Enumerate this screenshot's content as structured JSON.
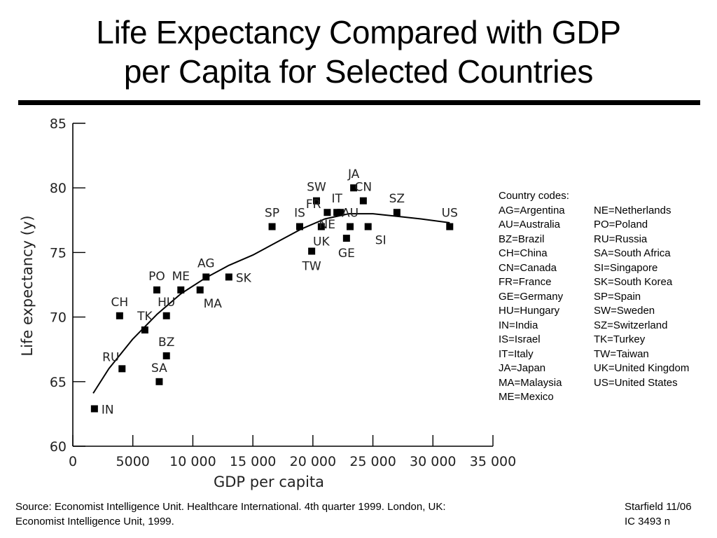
{
  "header": {
    "title_line1": "Life Expectancy Compared with GDP",
    "title_line2": "per Capita for Selected Countries"
  },
  "chart_data": {
    "type": "scatter",
    "xlabel": "GDP per capita",
    "ylabel": "Life expectancy (y)",
    "xlim": [
      0,
      35000
    ],
    "ylim": [
      60,
      85
    ],
    "x_ticks": [
      {
        "value": 0,
        "label": "0"
      },
      {
        "value": 5000,
        "label": "5000"
      },
      {
        "value": 10000,
        "label": "10 000"
      },
      {
        "value": 15000,
        "label": "15 000"
      },
      {
        "value": 20000,
        "label": "20 000"
      },
      {
        "value": 25000,
        "label": "25 000"
      },
      {
        "value": 30000,
        "label": "30 000"
      },
      {
        "value": 35000,
        "label": "35 000"
      }
    ],
    "y_ticks": [
      {
        "value": 60,
        "label": "60"
      },
      {
        "value": 65,
        "label": "65"
      },
      {
        "value": 70,
        "label": "70"
      },
      {
        "value": 75,
        "label": "75"
      },
      {
        "value": 80,
        "label": "80"
      },
      {
        "value": 85,
        "label": "85"
      }
    ],
    "grid": false,
    "marker": "square",
    "marker_color": "#000000",
    "points": [
      {
        "label": "IN",
        "x": 1800,
        "y": 62.9,
        "label_side": "right"
      },
      {
        "label": "RU",
        "x": 4100,
        "y": 66.0,
        "label_side": "upper-left"
      },
      {
        "label": "CH",
        "x": 3900,
        "y": 70.1,
        "label_side": "above"
      },
      {
        "label": "TK",
        "x": 6000,
        "y": 69.0,
        "label_side": "above"
      },
      {
        "label": "SA",
        "x": 7200,
        "y": 65.0,
        "label_side": "above"
      },
      {
        "label": "BZ",
        "x": 7800,
        "y": 67.0,
        "label_side": "above"
      },
      {
        "label": "HU",
        "x": 7800,
        "y": 70.1,
        "label_side": "above"
      },
      {
        "label": "PO",
        "x": 7000,
        "y": 72.1,
        "label_side": "above"
      },
      {
        "label": "ME",
        "x": 9000,
        "y": 72.1,
        "label_side": "above"
      },
      {
        "label": "MA",
        "x": 10600,
        "y": 72.1,
        "label_side": "below-right"
      },
      {
        "label": "AG",
        "x": 11100,
        "y": 73.1,
        "label_side": "above"
      },
      {
        "label": "SK",
        "x": 13000,
        "y": 73.1,
        "label_side": "right"
      },
      {
        "label": "SP",
        "x": 16600,
        "y": 77.0,
        "label_side": "above"
      },
      {
        "label": "IS",
        "x": 18900,
        "y": 77.0,
        "label_side": "above"
      },
      {
        "label": "TW",
        "x": 19900,
        "y": 75.1,
        "label_side": "below"
      },
      {
        "label": "SW",
        "x": 20300,
        "y": 79.0,
        "label_side": "above"
      },
      {
        "label": "UK",
        "x": 20700,
        "y": 77.0,
        "label_side": "below"
      },
      {
        "label": "FR",
        "x": 21200,
        "y": 78.1,
        "label_side": "left"
      },
      {
        "label": "IT",
        "x": 22000,
        "y": 78.1,
        "label_side": "above"
      },
      {
        "label": "NE",
        "x": 22300,
        "y": 78.1,
        "label_side": "below-left"
      },
      {
        "label": "GE",
        "x": 22800,
        "y": 76.1,
        "label_side": "below"
      },
      {
        "label": "AU",
        "x": 23100,
        "y": 77.0,
        "label_side": "above"
      },
      {
        "label": "JA",
        "x": 23400,
        "y": 80.0,
        "label_side": "above"
      },
      {
        "label": "CN",
        "x": 24200,
        "y": 79.0,
        "label_side": "above"
      },
      {
        "label": "SI",
        "x": 24600,
        "y": 77.0,
        "label_side": "below-right"
      },
      {
        "label": "SZ",
        "x": 27000,
        "y": 78.1,
        "label_side": "above"
      },
      {
        "label": "US",
        "x": 31400,
        "y": 77.0,
        "label_side": "above"
      }
    ],
    "trend_line": [
      {
        "x": 1700,
        "y": 64.1
      },
      {
        "x": 3000,
        "y": 66.0
      },
      {
        "x": 5000,
        "y": 68.3
      },
      {
        "x": 7000,
        "y": 70.2
      },
      {
        "x": 9000,
        "y": 71.8
      },
      {
        "x": 11000,
        "y": 73.0
      },
      {
        "x": 13000,
        "y": 74.0
      },
      {
        "x": 15000,
        "y": 74.8
      },
      {
        "x": 17000,
        "y": 75.8
      },
      {
        "x": 19000,
        "y": 76.8
      },
      {
        "x": 21000,
        "y": 77.6
      },
      {
        "x": 23000,
        "y": 78.0
      },
      {
        "x": 25000,
        "y": 78.0
      },
      {
        "x": 27000,
        "y": 77.8
      },
      {
        "x": 29000,
        "y": 77.6
      },
      {
        "x": 31400,
        "y": 77.3
      }
    ]
  },
  "legend": {
    "title": "Country codes:",
    "left": [
      "AG=Argentina",
      "AU=Australia",
      "BZ=Brazil",
      "CH=China",
      "CN=Canada",
      "FR=France",
      "GE=Germany",
      "HU=Hungary",
      "IN=India",
      "IS=Israel",
      "IT=Italy",
      "JA=Japan",
      "MA=Malaysia",
      "ME=Mexico"
    ],
    "right": [
      "NE=Netherlands",
      "PO=Poland",
      "RU=Russia",
      "SA=South Africa",
      "SI=Singapore",
      "SK=South Korea",
      "SP=Spain",
      "SW=Sweden",
      "SZ=Switzerland",
      "TK=Turkey",
      "TW=Taiwan",
      "UK=United Kingdom",
      "US=United States"
    ]
  },
  "footer": {
    "source_line1": "Source: Economist Intelligence Unit. Healthcare International. 4th quarter 1999. London, UK:",
    "source_line2": "Economist Intelligence Unit, 1999.",
    "credit_line1": "Starfield 11/06",
    "credit_line2": "IC 3493 n"
  }
}
